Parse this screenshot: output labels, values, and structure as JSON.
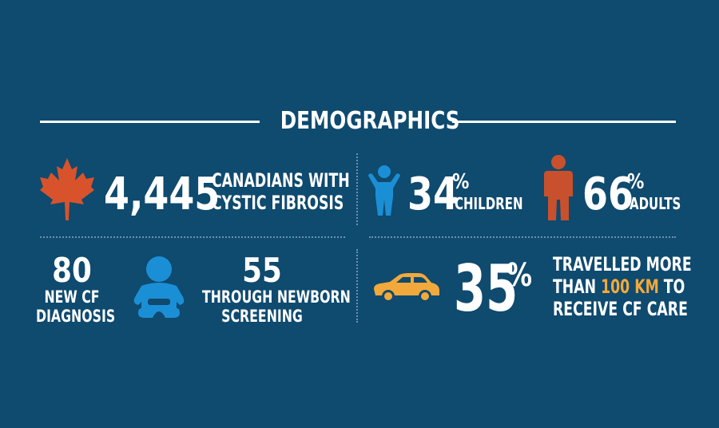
{
  "title": "DEMOGRAPHICS",
  "colors": {
    "background": "#0f4a6f",
    "text": "#ffffff",
    "maple": "#d8532b",
    "adult_figure": "#c9502c",
    "child_figure": "#1b8fd6",
    "baby": "#1b8fd6",
    "car": "#f2a93b",
    "highlight": "#f2a93b"
  },
  "canadians": {
    "number": "4,445",
    "line1": "CANADIANS WITH",
    "line2": "CYSTIC FIBROSIS",
    "icon": "maple-leaf-icon"
  },
  "children": {
    "number": "34",
    "unit": "%",
    "label": "CHILDREN",
    "icon": "child-icon"
  },
  "adults": {
    "number": "66",
    "unit": "%",
    "label": "ADULTS",
    "icon": "adult-icon"
  },
  "new_diagnosis": {
    "number": "80",
    "line1": "NEW CF",
    "line2": "DIAGNOSIS"
  },
  "newborn": {
    "number": "55",
    "line1": "THROUGH NEWBORN",
    "line2": "SCREENING",
    "icon": "baby-icon"
  },
  "travel": {
    "number": "35",
    "unit": "%",
    "line1": "TRAVELLED MORE",
    "line2_pre": "THAN ",
    "line2_highlight": "100 KM",
    "line2_post": " TO",
    "line3": "RECEIVE CF CARE",
    "icon": "car-icon"
  }
}
